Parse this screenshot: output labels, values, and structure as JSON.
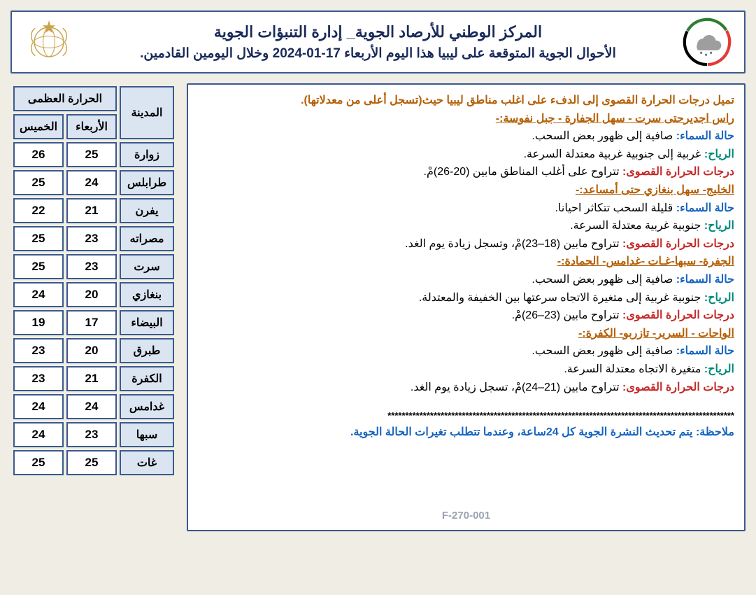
{
  "header": {
    "title": "المركز الوطني للأرصاد الجوية_ إدارة التنبؤات الجوية",
    "subtitle": "الأحوال الجوية المتوقعة على ليبيا هذا اليوم الأربعاء 17-01-2024 وخلال اليومين القادمين."
  },
  "summary": "تميل درجات الحرارة القصوى إلى الدفء على اغلب مناطق ليبيا حيث(تسجل أعلى من معدلاتها).",
  "regions": [
    {
      "name": "راس اجديرحتى سرت - سهل الجفارة - جبل نفوسة:-",
      "sky": "صافية إلى ظهور بعض السحب.",
      "wind": "غربية إلى جنوبية غربية معتدلة السرعة.",
      "temp": "تتراوح على أغلب المناطق مابين (20-26)مْ."
    },
    {
      "name": "الخليج- سهل بنغازي حتى أمساعد:-",
      "sky": "قليلة السحب تتكاثر احيانا.",
      "wind": "جنوبية غربية معتدلة السرعة.",
      "temp": "تتراوح مابين (18–23)مْ، وتسجل زيادة يوم الغد."
    },
    {
      "name": "الجفرة- سبها-غـات -غدامس- الحمادة:-",
      "sky": "صافية إلى ظهور بعض السحب.",
      "wind": "جنوبية غربية إلى متغيرة الاتجاه سرعتها بين الخفيفة والمعتدلة.",
      "temp": "تتراوح مابين (23–26)مْ."
    },
    {
      "name": "الواحات - السرير- تازربو- الكفرة:-",
      "sky": "صافية إلى ظهور بعض السحب.",
      "wind": "متغيرة الاتجاه معتدلة السرعة.",
      "temp": "تتراوح مابين (21–24)مْ، تسجل زيادة يوم الغد."
    }
  ],
  "labels": {
    "sky": "حالة السماء:",
    "wind": "الرياح:",
    "temp": "درجات الحرارة القصوى:",
    "note": "ملاحظة:"
  },
  "note_text": "يتم تحديث النشرة الجوية كل 24ساعة، وعندما تتطلب تغيرات الحالة الجوية.",
  "doc_code": "F-270-001",
  "table": {
    "header_top": "الحرارة العظمى",
    "header_city": "المدينة",
    "days": [
      "الأربعاء",
      "الخميس"
    ],
    "rows": [
      {
        "city": "زوارة",
        "vals": [
          "25",
          "26"
        ]
      },
      {
        "city": "طرابلس",
        "vals": [
          "24",
          "25"
        ]
      },
      {
        "city": "يفرن",
        "vals": [
          "21",
          "22"
        ]
      },
      {
        "city": "مصراته",
        "vals": [
          "23",
          "25"
        ]
      },
      {
        "city": "سرت",
        "vals": [
          "23",
          "25"
        ]
      },
      {
        "city": "بنغازي",
        "vals": [
          "20",
          "24"
        ]
      },
      {
        "city": "البيضاء",
        "vals": [
          "17",
          "19"
        ]
      },
      {
        "city": "طبرق",
        "vals": [
          "20",
          "23"
        ]
      },
      {
        "city": "الكفرة",
        "vals": [
          "21",
          "23"
        ]
      },
      {
        "city": "غدامس",
        "vals": [
          "24",
          "24"
        ]
      },
      {
        "city": "سبها",
        "vals": [
          "23",
          "24"
        ]
      },
      {
        "city": "غات",
        "vals": [
          "25",
          "25"
        ]
      }
    ]
  },
  "style": {
    "border_color": "#3a5a8f",
    "header_fill": "#dbe5f1",
    "bg": "#f0ede4",
    "summary_color": "#b45f06",
    "region_color": "#b45f06",
    "sky_color": "#1565c0",
    "wind_color": "#00897b",
    "temp_color": "#c62828",
    "note_color": "#1565c0"
  }
}
